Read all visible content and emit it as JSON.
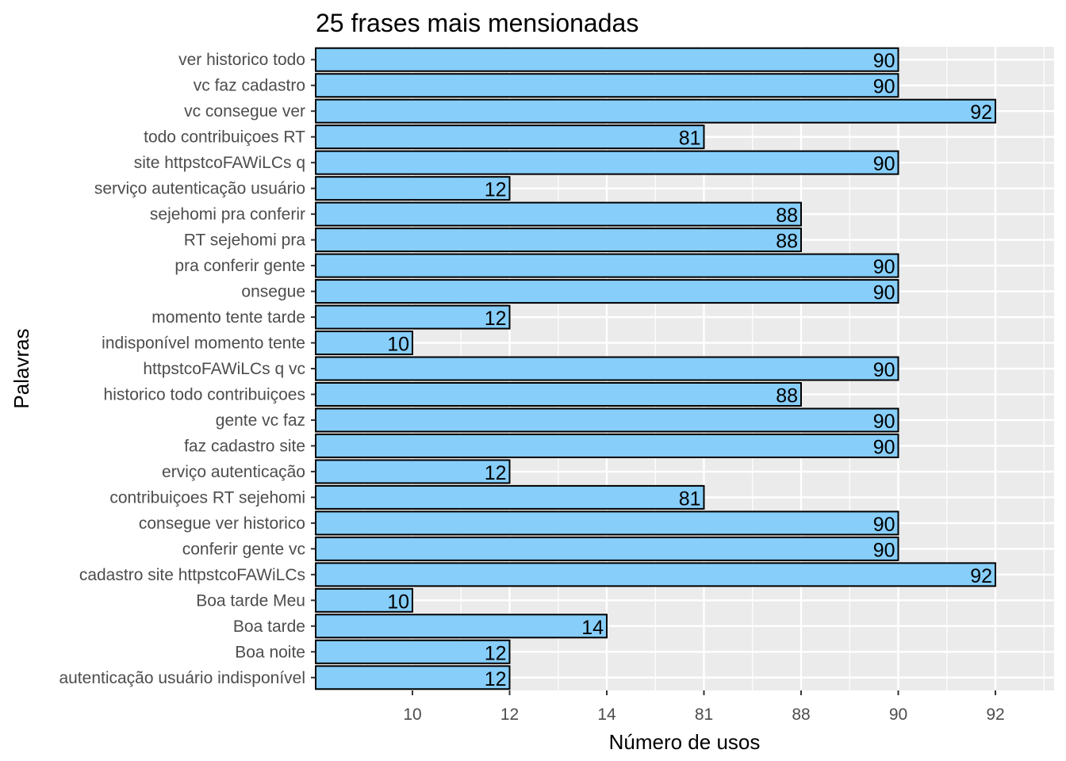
{
  "chart_data": {
    "type": "bar",
    "orientation": "horizontal",
    "title": "25 frases mais mensionadas",
    "xlabel": "Número de usos",
    "ylabel": "Palavras",
    "categories": [
      "ver historico todo",
      "vc faz cadastro",
      "vc consegue ver",
      "todo contribuiçoes RT",
      "site httpstcoFAWiLCs q",
      "serviço autenticação usuário",
      "sejehomi pra conferir",
      "RT sejehomi pra",
      "pra conferir gente",
      "onsegue",
      "momento tente tarde",
      "indisponível momento tente",
      "httpstcoFAWiLCs q vc",
      "historico todo contribuiçoes",
      "gente vc faz",
      "faz cadastro site",
      "erviço autenticação",
      "contribuiçoes RT sejehomi",
      "consegue ver historico",
      "conferir gente vc",
      "cadastro site httpstcoFAWiLCs",
      "Boa tarde Meu",
      "Boa tarde",
      "Boa noite",
      "autenticação usuário indisponível"
    ],
    "values": [
      90,
      90,
      92,
      81,
      90,
      12,
      88,
      88,
      90,
      90,
      12,
      10,
      90,
      88,
      90,
      90,
      12,
      81,
      90,
      90,
      92,
      10,
      14,
      12,
      12
    ],
    "x_ticks": [
      "10",
      "12",
      "14",
      "81",
      "88",
      "90",
      "92"
    ],
    "x_scale": "discrete-ordinal",
    "grid": true,
    "bar_fill": "#87cefa",
    "bar_stroke": "#000000",
    "panel_background": "#ebebeb"
  }
}
